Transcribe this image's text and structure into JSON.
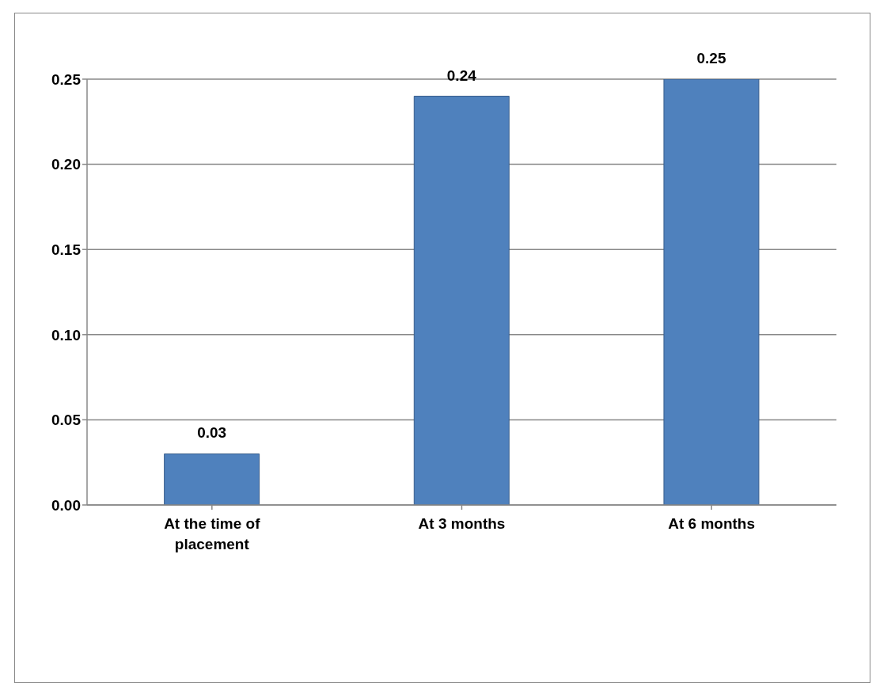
{
  "chart_data": {
    "type": "bar",
    "categories": [
      "At the time of placement",
      "At 3 months",
      "At 6 months"
    ],
    "values": [
      0.03,
      0.24,
      0.25
    ],
    "color": "#4f81bd",
    "ylim": [
      0,
      0.25
    ],
    "yticks": [
      {
        "value": 0,
        "label": "0.00"
      },
      {
        "value": 0.05,
        "label": "0.05"
      },
      {
        "value": 0.1,
        "label": "0.10"
      },
      {
        "value": 0.15,
        "label": "0.15"
      },
      {
        "value": 0.2,
        "label": "0.20"
      },
      {
        "value": 0.25,
        "label": "0.25"
      }
    ],
    "grid": "y",
    "data_labels": true,
    "legend": false
  }
}
